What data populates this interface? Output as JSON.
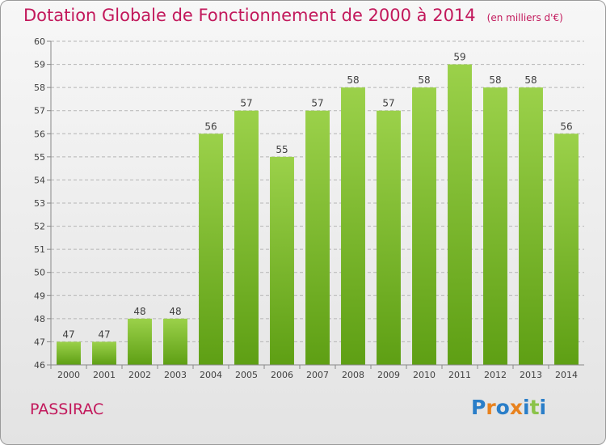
{
  "header": {
    "title": "Dotation Globale de Fonctionnement de 2000 à 2014",
    "unit": "(en milliers d'€)"
  },
  "footer": {
    "commune": "PASSIRAC",
    "logo": "Proxiti"
  },
  "colors": {
    "title": "#c2185b",
    "bar_top": "#9bd14a",
    "bar_bottom": "#5e9f14",
    "grid": "#b5b5b5",
    "axis_text": "#404040",
    "logo_letters": [
      "#2a7ec8",
      "#e8821e",
      "#2a7ec8",
      "#e8821e",
      "#2a7ec8",
      "#8bc34a",
      "#2a7ec8"
    ]
  },
  "chart_data": {
    "type": "bar",
    "categories": [
      "2000",
      "2001",
      "2002",
      "2003",
      "2004",
      "2005",
      "2006",
      "2007",
      "2008",
      "2009",
      "2010",
      "2011",
      "2012",
      "2013",
      "2014"
    ],
    "values": [
      47,
      47,
      48,
      48,
      56,
      57,
      55,
      57,
      58,
      57,
      58,
      59,
      58,
      58,
      56
    ],
    "ylim": [
      46,
      60
    ],
    "yticks": [
      46,
      47,
      48,
      49,
      50,
      51,
      52,
      53,
      54,
      55,
      56,
      57,
      58,
      59,
      60
    ],
    "grid": true,
    "xlabel": "",
    "ylabel": ""
  }
}
